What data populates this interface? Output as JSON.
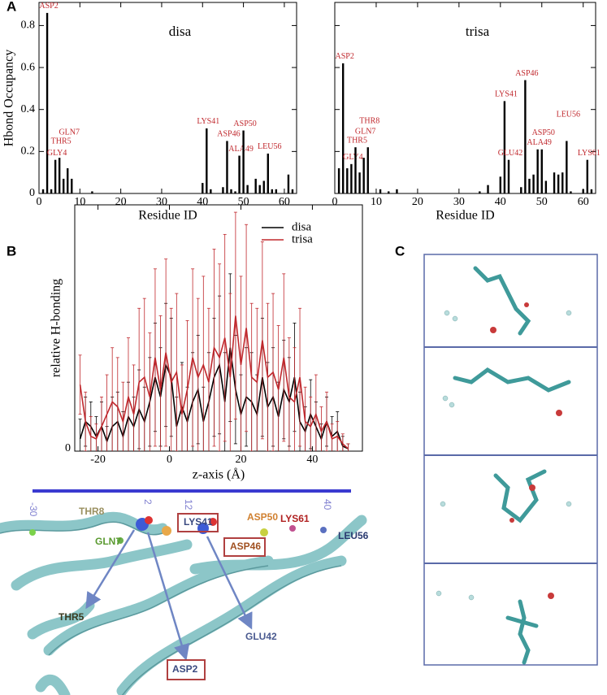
{
  "panels": [
    "A",
    "B",
    "C"
  ],
  "chart_data": [
    {
      "type": "bar",
      "title": "disa",
      "x_label": "Residue ID",
      "y_label": "Hbond Occupancy",
      "color": "#000000",
      "label_color": "#c0282d",
      "x": [
        1,
        2,
        3,
        4,
        5,
        6,
        7,
        8,
        13,
        40,
        41,
        42,
        45,
        46,
        47,
        48,
        49,
        50,
        51,
        53,
        54,
        55,
        56,
        57,
        58,
        61,
        62
      ],
      "values": [
        0.02,
        0.86,
        0.02,
        0.16,
        0.17,
        0.07,
        0.12,
        0.07,
        0.01,
        0.05,
        0.31,
        0.02,
        0.03,
        0.25,
        0.02,
        0.01,
        0.18,
        0.3,
        0.04,
        0.07,
        0.04,
        0.06,
        0.19,
        0.02,
        0.02,
        0.09,
        0.02
      ],
      "bar_labels": [
        null,
        "ASP2",
        null,
        "GLY4",
        "THR5",
        null,
        "GLN7",
        null,
        null,
        null,
        "LYS41",
        null,
        null,
        "ASP46",
        null,
        null,
        "ALA49",
        "ASP50",
        null,
        null,
        null,
        null,
        "LEU56",
        null,
        null,
        null,
        null
      ],
      "xlim": [
        0,
        63
      ],
      "ylim": [
        0,
        0.91
      ],
      "xticks": [
        0,
        10,
        20,
        30,
        40,
        50,
        60
      ],
      "yticks": [
        0,
        0.2,
        0.4,
        0.6,
        0.8
      ],
      "ytick_labels": true
    },
    {
      "type": "bar",
      "title": "trisa",
      "x_label": "Residue ID",
      "color": "#000000",
      "label_color": "#c0282d",
      "x": [
        1,
        2,
        3,
        4,
        5,
        6,
        7,
        8,
        11,
        13,
        15,
        35,
        37,
        40,
        41,
        42,
        45,
        46,
        47,
        48,
        49,
        50,
        51,
        53,
        54,
        55,
        56,
        57,
        60,
        61,
        62
      ],
      "values": [
        0.12,
        0.62,
        0.12,
        0.14,
        0.22,
        0.1,
        0.17,
        0.22,
        0.02,
        0.01,
        0.02,
        0.01,
        0.04,
        0.08,
        0.44,
        0.16,
        0.03,
        0.54,
        0.07,
        0.09,
        0.21,
        0.21,
        0.06,
        0.1,
        0.09,
        0.1,
        0.25,
        0.01,
        0.02,
        0.16,
        0.02
      ],
      "bar_labels": [
        null,
        "ASP2",
        null,
        "GLY4",
        "THR5",
        null,
        "GLN7",
        "THR8",
        null,
        null,
        null,
        null,
        null,
        null,
        "LYS41",
        "GLU42",
        null,
        "ASP46",
        null,
        null,
        "ALA49",
        "ASP50",
        null,
        null,
        null,
        null,
        "LEU56",
        null,
        null,
        "LYS61",
        null
      ],
      "xlim": [
        0,
        63
      ],
      "ylim": [
        0,
        0.91
      ],
      "xticks": [
        0,
        10,
        20,
        30,
        40,
        50,
        60
      ],
      "yticks": [
        0,
        0.2,
        0.4,
        0.6,
        0.8
      ],
      "ytick_labels": false
    },
    {
      "type": "line",
      "x_label": "z-axis (Å)",
      "y_label": "relative H-bonding",
      "legend": "top-right",
      "x": [
        -25,
        -23.5,
        -22,
        -20.5,
        -19,
        -17.5,
        -16,
        -14.5,
        -13,
        -11.5,
        -10,
        -8.5,
        -7,
        -5.5,
        -4,
        -2.5,
        -1,
        0.5,
        2,
        3.5,
        5,
        6.5,
        8,
        9.5,
        11,
        12.5,
        14,
        15.5,
        17,
        18.5,
        20,
        21.5,
        23,
        24.5,
        26,
        27.5,
        29,
        30.5,
        32,
        33.5,
        35,
        36.5,
        38,
        39.5,
        41,
        42.5,
        44,
        45.5,
        47,
        48.5,
        50
      ],
      "series": [
        {
          "name": "disa",
          "color": "#000000",
          "values": [
            0.05,
            0.12,
            0.1,
            0.06,
            0.1,
            0.04,
            0.1,
            0.12,
            0.06,
            0.14,
            0.1,
            0.17,
            0.12,
            0.2,
            0.3,
            0.22,
            0.35,
            0.3,
            0.1,
            0.18,
            0.12,
            0.2,
            0.25,
            0.12,
            0.2,
            0.3,
            0.35,
            0.2,
            0.42,
            0.25,
            0.15,
            0.22,
            0.2,
            0.15,
            0.3,
            0.18,
            0.22,
            0.14,
            0.25,
            0.2,
            0.3,
            0.12,
            0.08,
            0.15,
            0.1,
            0.05,
            0.12,
            0.06,
            0.08,
            0.02,
            0.01
          ],
          "errors": [
            0.08,
            0.1,
            0.1,
            0.08,
            0.1,
            0.06,
            0.12,
            0.12,
            0.1,
            0.14,
            0.12,
            0.16,
            0.14,
            0.18,
            0.22,
            0.2,
            0.25,
            0.24,
            0.12,
            0.18,
            0.14,
            0.2,
            0.22,
            0.14,
            0.2,
            0.24,
            0.28,
            0.2,
            0.3,
            0.22,
            0.16,
            0.2,
            0.2,
            0.16,
            0.24,
            0.18,
            0.2,
            0.14,
            0.2,
            0.18,
            0.22,
            0.12,
            0.1,
            0.14,
            0.1,
            0.06,
            0.1,
            0.08,
            0.08,
            0.04,
            0.02
          ]
        },
        {
          "name": "trisa",
          "color": "#c0282d",
          "values": [
            0.27,
            0.12,
            0.06,
            0.05,
            0.1,
            0.15,
            0.2,
            0.18,
            0.12,
            0.22,
            0.15,
            0.28,
            0.3,
            0.22,
            0.38,
            0.25,
            0.4,
            0.28,
            0.32,
            0.15,
            0.25,
            0.38,
            0.3,
            0.35,
            0.28,
            0.42,
            0.38,
            0.46,
            0.3,
            0.55,
            0.35,
            0.5,
            0.3,
            0.28,
            0.45,
            0.3,
            0.32,
            0.25,
            0.38,
            0.22,
            0.2,
            0.3,
            0.12,
            0.1,
            0.15,
            0.08,
            0.12,
            0.05,
            0.06,
            0.03,
            0.01
          ],
          "errors": [
            0.12,
            0.12,
            0.08,
            0.06,
            0.12,
            0.16,
            0.22,
            0.2,
            0.16,
            0.24,
            0.2,
            0.3,
            0.32,
            0.26,
            0.36,
            0.3,
            0.38,
            0.3,
            0.32,
            0.2,
            0.28,
            0.36,
            0.32,
            0.36,
            0.3,
            0.4,
            0.38,
            0.42,
            0.34,
            0.42,
            0.36,
            0.42,
            0.3,
            0.3,
            0.4,
            0.3,
            0.32,
            0.26,
            0.34,
            0.24,
            0.22,
            0.28,
            0.14,
            0.12,
            0.16,
            0.1,
            0.12,
            0.06,
            0.06,
            0.04,
            0.02
          ]
        }
      ],
      "xlim": [
        -26.5,
        54
      ],
      "ylim": [
        0,
        1
      ],
      "xticks": [
        -20,
        0,
        20,
        40
      ],
      "yticks": [
        0
      ]
    }
  ],
  "structure": {
    "scale_labels": [
      "-30",
      "2",
      "12",
      "40"
    ],
    "residue_labels": [
      "THR8",
      "GLN7",
      "LYS41",
      "ASP50",
      "LYS61",
      "LEU56",
      "ASP46",
      "THR5",
      "ASP2",
      "GLU42"
    ]
  }
}
